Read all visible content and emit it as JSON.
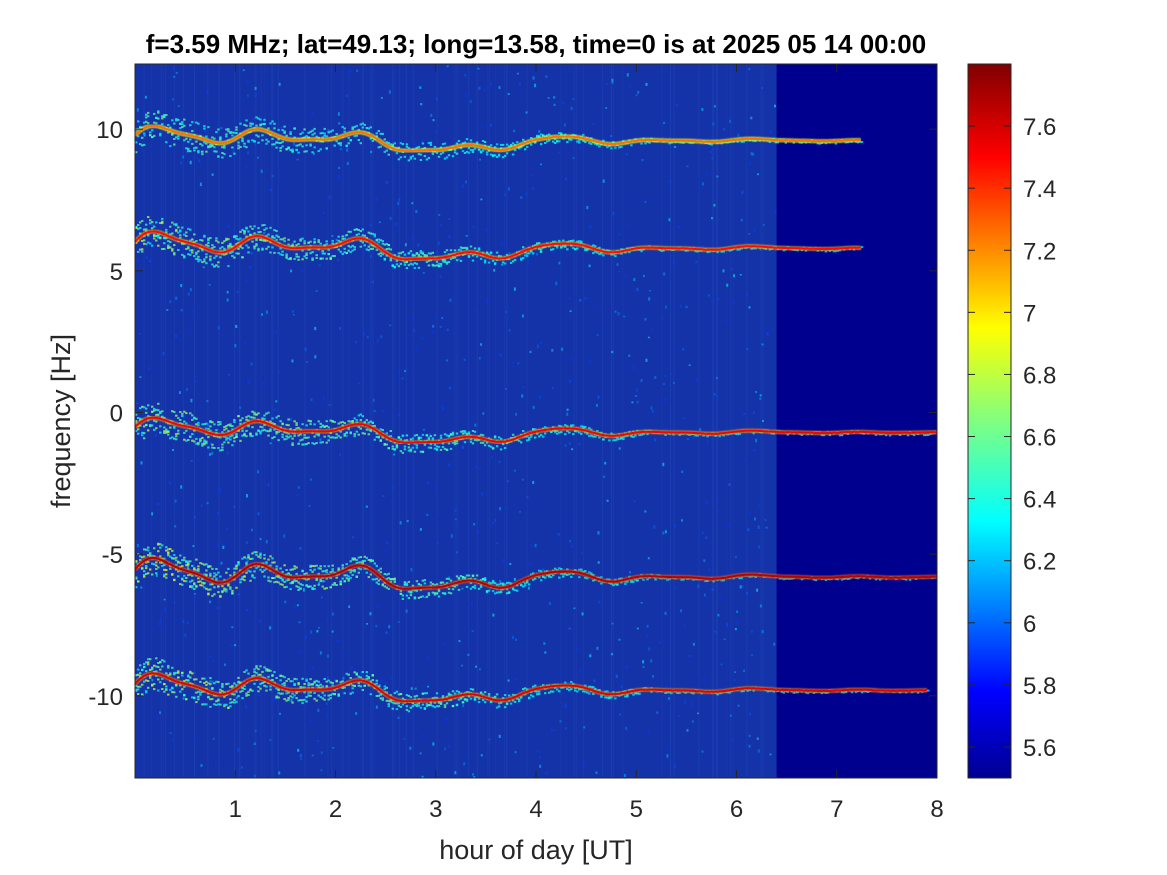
{
  "chart_data": {
    "type": "heatmap",
    "title": "f=3.59 MHz;  lat=49.13; long=13.58, time=0 is at 2025 05 14 00:00",
    "xlabel": "hour of day [UT]",
    "ylabel": "frequency [Hz]",
    "xlim": [
      0,
      8
    ],
    "ylim": [
      -12.9,
      12.3
    ],
    "x_ticks": [
      1,
      2,
      3,
      4,
      5,
      6,
      7,
      8
    ],
    "y_ticks": [
      10,
      5,
      0,
      -5,
      -10
    ],
    "colorbar": {
      "range": [
        5.5,
        7.8
      ],
      "ticks": [
        "7.6",
        "7.4",
        "7.2",
        "7",
        "6.8",
        "6.6",
        "6.4",
        "6.2",
        "6",
        "5.8",
        "5.6"
      ],
      "colormap": "jet"
    },
    "data_end_hour": 6.4,
    "series": [
      {
        "center_hz": 9.6,
        "amplitude": 0.3,
        "intensity": 0.55,
        "end_hour": 7.25
      },
      {
        "center_hz": 5.8,
        "amplitude": 0.35,
        "intensity": 0.8,
        "end_hour": 7.25
      },
      {
        "center_hz": -0.7,
        "amplitude": 0.3,
        "intensity": 0.85,
        "end_hour": 8.0
      },
      {
        "center_hz": -5.8,
        "amplitude": 0.4,
        "intensity": 1.0,
        "end_hour": 8.0
      },
      {
        "center_hz": -9.8,
        "amplitude": 0.35,
        "intensity": 0.9,
        "end_hour": 7.9
      }
    ],
    "colors": {
      "background": "#1533a8",
      "empty_region": "#00008f",
      "low": "#000080",
      "high": "#800000"
    }
  }
}
